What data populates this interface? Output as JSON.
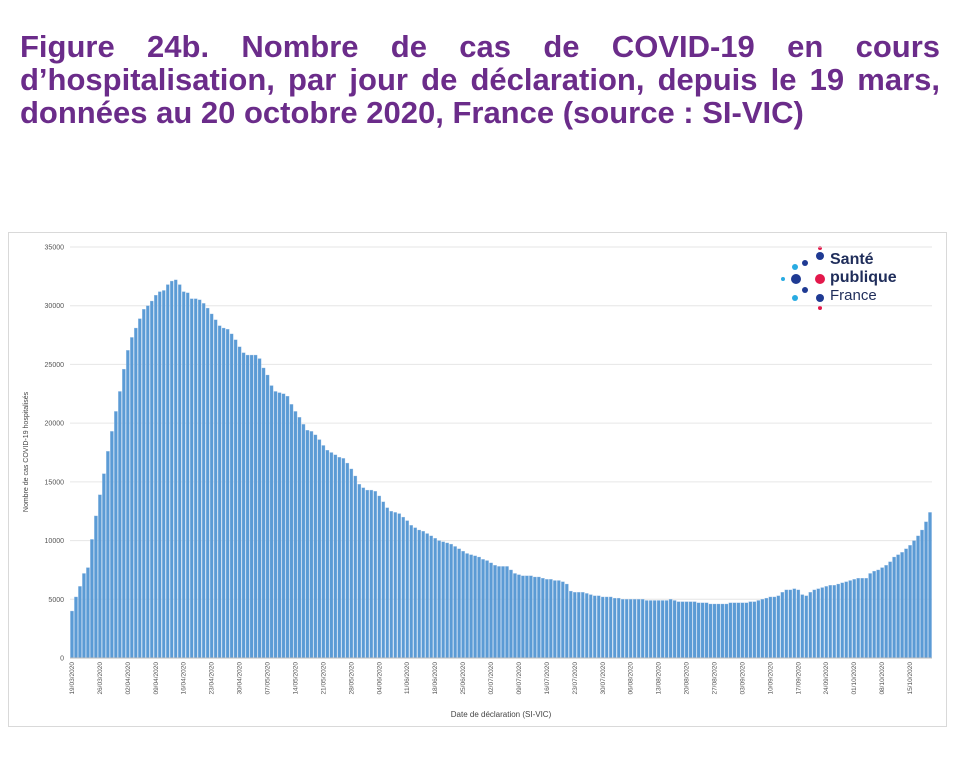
{
  "title": "Figure 24b. Nombre de cas de COVID-19 en cours d’hospitalisation, par jour de déclaration, depuis le 19 mars, données au 20 octobre 2020, France (source : SI-VIC)",
  "logo": {
    "line1": "Santé",
    "line2": "publique",
    "line3": "France"
  },
  "chart_data": {
    "type": "bar",
    "y_label": "Nombre de cas COVID-19 hospitalisés",
    "x_label": "Date de déclaration (SI-VIC)",
    "color": "#5b9bd5",
    "grid": true,
    "ylim": [
      0,
      35000
    ],
    "yticks": [
      0,
      5000,
      10000,
      15000,
      20000,
      25000,
      30000,
      35000
    ],
    "categories": [
      "19/03/2020",
      null,
      null,
      null,
      null,
      null,
      null,
      "26/03/2020",
      null,
      null,
      null,
      null,
      null,
      null,
      "02/04/2020",
      null,
      null,
      null,
      null,
      null,
      null,
      "09/04/2020",
      null,
      null,
      null,
      null,
      null,
      null,
      "16/04/2020",
      null,
      null,
      null,
      null,
      null,
      null,
      "23/04/2020",
      null,
      null,
      null,
      null,
      null,
      null,
      "30/04/2020",
      null,
      null,
      null,
      null,
      null,
      null,
      "07/05/2020",
      null,
      null,
      null,
      null,
      null,
      null,
      "14/05/2020",
      null,
      null,
      null,
      null,
      null,
      null,
      "21/05/2020",
      null,
      null,
      null,
      null,
      null,
      null,
      "28/05/2020",
      null,
      null,
      null,
      null,
      null,
      null,
      "04/06/2020",
      null,
      null,
      null,
      null,
      null,
      null,
      "11/06/2020",
      null,
      null,
      null,
      null,
      null,
      null,
      "18/06/2020",
      null,
      null,
      null,
      null,
      null,
      null,
      "25/06/2020",
      null,
      null,
      null,
      null,
      null,
      null,
      "02/07/2020",
      null,
      null,
      null,
      null,
      null,
      null,
      "09/07/2020",
      null,
      null,
      null,
      null,
      null,
      null,
      "16/07/2020",
      null,
      null,
      null,
      null,
      null,
      null,
      "23/07/2020",
      null,
      null,
      null,
      null,
      null,
      null,
      "30/07/2020",
      null,
      null,
      null,
      null,
      null,
      null,
      "06/08/2020",
      null,
      null,
      null,
      null,
      null,
      null,
      "13/08/2020",
      null,
      null,
      null,
      null,
      null,
      null,
      "20/08/2020",
      null,
      null,
      null,
      null,
      null,
      null,
      "27/08/2020",
      null,
      null,
      null,
      null,
      null,
      null,
      "03/09/2020",
      null,
      null,
      null,
      null,
      null,
      null,
      "10/09/2020",
      null,
      null,
      null,
      null,
      null,
      null,
      "17/09/2020",
      null,
      null,
      null,
      null,
      null,
      null,
      "24/09/2020",
      null,
      null,
      null,
      null,
      null,
      null,
      "01/10/2020",
      null,
      null,
      null,
      null,
      null,
      null,
      "08/10/2020",
      null,
      null,
      null,
      null,
      null,
      null,
      "15/10/2020",
      null,
      null,
      null,
      null,
      null
    ],
    "values": [
      4000,
      5200,
      6100,
      7200,
      7700,
      10100,
      12100,
      13900,
      15700,
      17600,
      19300,
      21000,
      22700,
      24600,
      26200,
      27300,
      28100,
      28900,
      29700,
      30000,
      30400,
      30900,
      31200,
      31300,
      31800,
      32100,
      32200,
      31800,
      31200,
      31100,
      30600,
      30600,
      30500,
      30200,
      29800,
      29300,
      28800,
      28300,
      28100,
      28000,
      27600,
      27100,
      26500,
      26000,
      25800,
      25800,
      25800,
      25500,
      24700,
      24100,
      23200,
      22700,
      22600,
      22500,
      22300,
      21600,
      21000,
      20500,
      19900,
      19400,
      19300,
      19000,
      18600,
      18100,
      17700,
      17500,
      17300,
      17100,
      17000,
      16600,
      16100,
      15500,
      14800,
      14500,
      14300,
      14300,
      14200,
      13800,
      13300,
      12800,
      12500,
      12400,
      12300,
      12000,
      11700,
      11300,
      11100,
      10900,
      10800,
      10600,
      10400,
      10200,
      10000,
      9900,
      9800,
      9700,
      9500,
      9300,
      9100,
      8900,
      8800,
      8700,
      8600,
      8400,
      8300,
      8100,
      7900,
      7800,
      7800,
      7800,
      7500,
      7200,
      7100,
      7000,
      7000,
      7000,
      6900,
      6900,
      6800,
      6700,
      6700,
      6600,
      6600,
      6500,
      6300,
      5700,
      5600,
      5600,
      5600,
      5500,
      5400,
      5300,
      5300,
      5200,
      5200,
      5200,
      5100,
      5100,
      5000,
      5000,
      5000,
      5000,
      5000,
      5000,
      4900,
      4900,
      4900,
      4900,
      4900,
      4900,
      5000,
      4900,
      4800,
      4800,
      4800,
      4800,
      4800,
      4700,
      4700,
      4700,
      4600,
      4600,
      4600,
      4600,
      4600,
      4700,
      4700,
      4700,
      4700,
      4700,
      4800,
      4800,
      4900,
      5000,
      5100,
      5200,
      5200,
      5300,
      5600,
      5800,
      5800,
      5900,
      5800,
      5400,
      5300,
      5600,
      5800,
      5900,
      6000,
      6100,
      6200,
      6200,
      6300,
      6400,
      6500,
      6600,
      6700,
      6800,
      6800,
      6800,
      7200,
      7400,
      7500,
      7700,
      7900,
      8200,
      8600,
      8800,
      9000,
      9300,
      9600,
      10000,
      10400,
      10900,
      11600,
      12400
    ]
  }
}
